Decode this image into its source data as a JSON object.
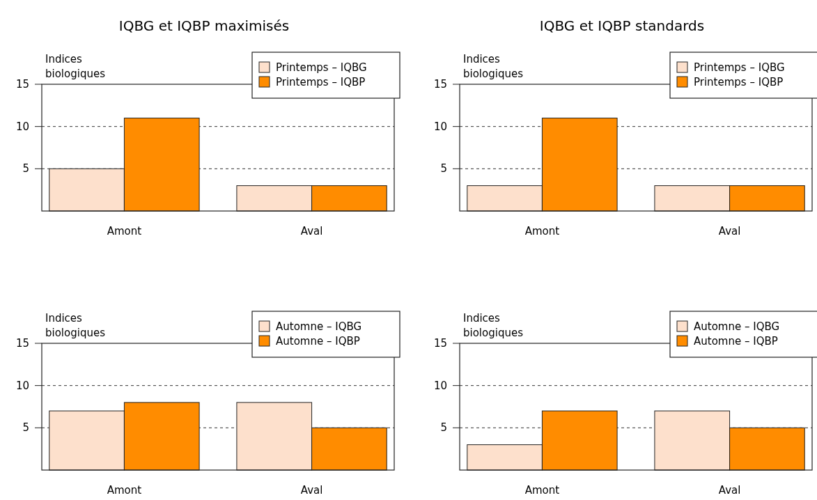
{
  "chart_data": [
    {
      "type": "bar",
      "title": "IQBG et IQBP maximisés",
      "ylabel": "Indices biologiques",
      "categories": [
        "Amont",
        "Aval"
      ],
      "series": [
        {
          "name": "Printemps – IQBG",
          "color": "#fde0cc",
          "values": [
            5,
            3
          ]
        },
        {
          "name": "Printemps – IQBP",
          "color": "#ff8c00",
          "values": [
            11,
            3
          ]
        }
      ],
      "ylim": [
        0,
        15
      ],
      "yticks": [
        5,
        10,
        15
      ],
      "grid": "y",
      "legend": "top right"
    },
    {
      "type": "bar",
      "title": "IQBG et IQBP standards",
      "ylabel": "Indices biologiques",
      "categories": [
        "Amont",
        "Aval"
      ],
      "series": [
        {
          "name": "Printemps – IQBG",
          "color": "#fde0cc",
          "values": [
            3,
            3
          ]
        },
        {
          "name": "Printemps – IQBP",
          "color": "#ff8c00",
          "values": [
            11,
            3
          ]
        }
      ],
      "ylim": [
        0,
        15
      ],
      "yticks": [
        5,
        10,
        15
      ],
      "grid": "y",
      "legend": "top right"
    },
    {
      "type": "bar",
      "ylabel": "Indices biologiques",
      "categories": [
        "Amont",
        "Aval"
      ],
      "series": [
        {
          "name": "Automne – IQBG",
          "color": "#fde0cc",
          "values": [
            7,
            8
          ]
        },
        {
          "name": "Automne – IQBP",
          "color": "#ff8c00",
          "values": [
            8,
            5
          ]
        }
      ],
      "ylim": [
        0,
        15
      ],
      "yticks": [
        5,
        10,
        15
      ],
      "grid": "y",
      "legend": "top right"
    },
    {
      "type": "bar",
      "ylabel": "Indices biologiques",
      "categories": [
        "Amont",
        "Aval"
      ],
      "series": [
        {
          "name": "Automne – IQBG",
          "color": "#fde0cc",
          "values": [
            3,
            7
          ]
        },
        {
          "name": "Automne – IQBP",
          "color": "#ff8c00",
          "values": [
            7,
            5
          ]
        }
      ],
      "ylim": [
        0,
        15
      ],
      "yticks": [
        5,
        10,
        15
      ],
      "grid": "y",
      "legend": "top right"
    }
  ]
}
